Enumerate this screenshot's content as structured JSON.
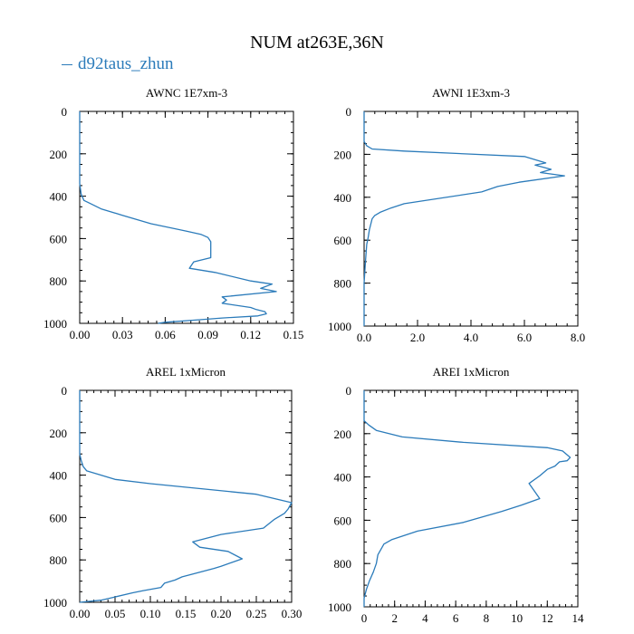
{
  "figure": {
    "title": "NUM at263E,36N",
    "legend": {
      "label": "d92taus_zhun",
      "color": "#2b7bba"
    }
  },
  "chart_data": [
    {
      "type": "line",
      "title": "AWNC  1E7xm-3",
      "ylim": [
        1000,
        0
      ],
      "yticks": [
        0,
        200,
        400,
        600,
        800,
        1000
      ],
      "ytick_labels": [
        "0",
        "200",
        "400",
        "600",
        "800",
        "1000"
      ],
      "xlim": [
        0,
        0.15
      ],
      "xticks": [
        0,
        0.03,
        0.06,
        0.09,
        0.12,
        0.15
      ],
      "xtick_labels": [
        "0.00",
        "0.03",
        "0.06",
        "0.09",
        "0.12",
        "0.15"
      ],
      "series": [
        {
          "name": "d92taus_zhun",
          "points": [
            [
              0.0,
              0
            ],
            [
              0.0,
              340
            ],
            [
              0.001,
              390
            ],
            [
              0.003,
              420
            ],
            [
              0.006,
              430
            ],
            [
              0.015,
              460
            ],
            [
              0.03,
              490
            ],
            [
              0.05,
              530
            ],
            [
              0.075,
              565
            ],
            [
              0.085,
              580
            ],
            [
              0.09,
              595
            ],
            [
              0.092,
              615
            ],
            [
              0.092,
              690
            ],
            [
              0.08,
              710
            ],
            [
              0.077,
              740
            ],
            [
              0.095,
              760
            ],
            [
              0.12,
              800
            ],
            [
              0.135,
              815
            ],
            [
              0.127,
              835
            ],
            [
              0.138,
              850
            ],
            [
              0.1,
              875
            ],
            [
              0.103,
              890
            ],
            [
              0.1,
              905
            ],
            [
              0.12,
              925
            ],
            [
              0.124,
              935
            ],
            [
              0.13,
              945
            ],
            [
              0.131,
              955
            ],
            [
              0.125,
              965
            ],
            [
              0.1,
              975
            ],
            [
              0.08,
              985
            ],
            [
              0.06,
              995
            ],
            [
              0.055,
              1000
            ]
          ]
        }
      ]
    },
    {
      "type": "line",
      "title": "AWNI  1E3xm-3",
      "ylim": [
        1000,
        0
      ],
      "yticks": [
        0,
        200,
        400,
        600,
        800,
        1000
      ],
      "ytick_labels": [
        "0",
        "200",
        "400",
        "600",
        "800",
        "1000"
      ],
      "xlim": [
        0,
        8
      ],
      "xticks": [
        0,
        2,
        4,
        6,
        8
      ],
      "xtick_labels": [
        "0.0",
        "2.0",
        "4.0",
        "6.0",
        "8.0"
      ],
      "series": [
        {
          "name": "d92taus_zhun",
          "points": [
            [
              0.0,
              0
            ],
            [
              0.0,
              140
            ],
            [
              0.1,
              160
            ],
            [
              0.3,
              175
            ],
            [
              1.5,
              185
            ],
            [
              6.0,
              210
            ],
            [
              6.8,
              240
            ],
            [
              6.4,
              250
            ],
            [
              7.0,
              270
            ],
            [
              6.6,
              285
            ],
            [
              7.5,
              300
            ],
            [
              5.8,
              330
            ],
            [
              5.0,
              350
            ],
            [
              4.4,
              375
            ],
            [
              1.5,
              430
            ],
            [
              1.0,
              450
            ],
            [
              0.6,
              470
            ],
            [
              0.4,
              485
            ],
            [
              0.3,
              500
            ],
            [
              0.2,
              550
            ],
            [
              0.15,
              590
            ],
            [
              0.1,
              620
            ],
            [
              0.05,
              700
            ],
            [
              0.0,
              800
            ],
            [
              0.0,
              1000
            ]
          ]
        }
      ]
    },
    {
      "type": "line",
      "title": "AREL  1xMicron",
      "ylim": [
        1000,
        0
      ],
      "yticks": [
        0,
        200,
        400,
        600,
        800,
        1000
      ],
      "ytick_labels": [
        "0",
        "200",
        "400",
        "600",
        "800",
        "1000"
      ],
      "xlim": [
        0,
        0.3
      ],
      "xticks": [
        0,
        0.05,
        0.1,
        0.15,
        0.2,
        0.25,
        0.3
      ],
      "xtick_labels": [
        "0.00",
        "0.05",
        "0.10",
        "0.15",
        "0.20",
        "0.25",
        "0.30"
      ],
      "series": [
        {
          "name": "d92taus_zhun",
          "points": [
            [
              0.0,
              0
            ],
            [
              0.0,
              300
            ],
            [
              0.002,
              330
            ],
            [
              0.005,
              360
            ],
            [
              0.01,
              380
            ],
            [
              0.05,
              420
            ],
            [
              0.1,
              440
            ],
            [
              0.25,
              490
            ],
            [
              0.3,
              530
            ],
            [
              0.295,
              560
            ],
            [
              0.29,
              580
            ],
            [
              0.275,
              610
            ],
            [
              0.26,
              650
            ],
            [
              0.2,
              680
            ],
            [
              0.16,
              715
            ],
            [
              0.17,
              740
            ],
            [
              0.21,
              760
            ],
            [
              0.23,
              795
            ],
            [
              0.2,
              830
            ],
            [
              0.19,
              840
            ],
            [
              0.145,
              880
            ],
            [
              0.135,
              895
            ],
            [
              0.12,
              910
            ],
            [
              0.115,
              930
            ],
            [
              0.09,
              945
            ],
            [
              0.075,
              955
            ],
            [
              0.05,
              975
            ],
            [
              0.03,
              990
            ],
            [
              0.0,
              1000
            ]
          ]
        }
      ]
    },
    {
      "type": "line",
      "title": "AREI  1xMicron",
      "ylim": [
        1000,
        0
      ],
      "yticks": [
        0,
        200,
        400,
        600,
        800,
        1000
      ],
      "ytick_labels": [
        "0",
        "200",
        "400",
        "600",
        "800",
        "1000"
      ],
      "xlim": [
        0,
        14
      ],
      "xticks": [
        0,
        2,
        4,
        6,
        8,
        10,
        12,
        14
      ],
      "xtick_labels": [
        "0",
        "2",
        "4",
        "6",
        "8",
        "10",
        "12",
        "14"
      ],
      "series": [
        {
          "name": "d92taus_zhun",
          "points": [
            [
              0.0,
              0
            ],
            [
              0.0,
              140
            ],
            [
              0.3,
              160
            ],
            [
              0.8,
              185
            ],
            [
              2.5,
              215
            ],
            [
              6.5,
              240
            ],
            [
              12.0,
              265
            ],
            [
              13.0,
              280
            ],
            [
              13.5,
              310
            ],
            [
              13.3,
              325
            ],
            [
              12.8,
              330
            ],
            [
              12.5,
              350
            ],
            [
              12.0,
              365
            ],
            [
              11.5,
              395
            ],
            [
              10.8,
              430
            ],
            [
              11.5,
              500
            ],
            [
              10.3,
              530
            ],
            [
              9.0,
              560
            ],
            [
              6.5,
              610
            ],
            [
              3.5,
              650
            ],
            [
              1.8,
              690
            ],
            [
              1.3,
              710
            ],
            [
              0.9,
              760
            ],
            [
              0.8,
              800
            ],
            [
              0.6,
              840
            ],
            [
              0.35,
              880
            ],
            [
              0.15,
              920
            ],
            [
              0.0,
              960
            ],
            [
              0.0,
              1000
            ]
          ]
        }
      ]
    }
  ]
}
